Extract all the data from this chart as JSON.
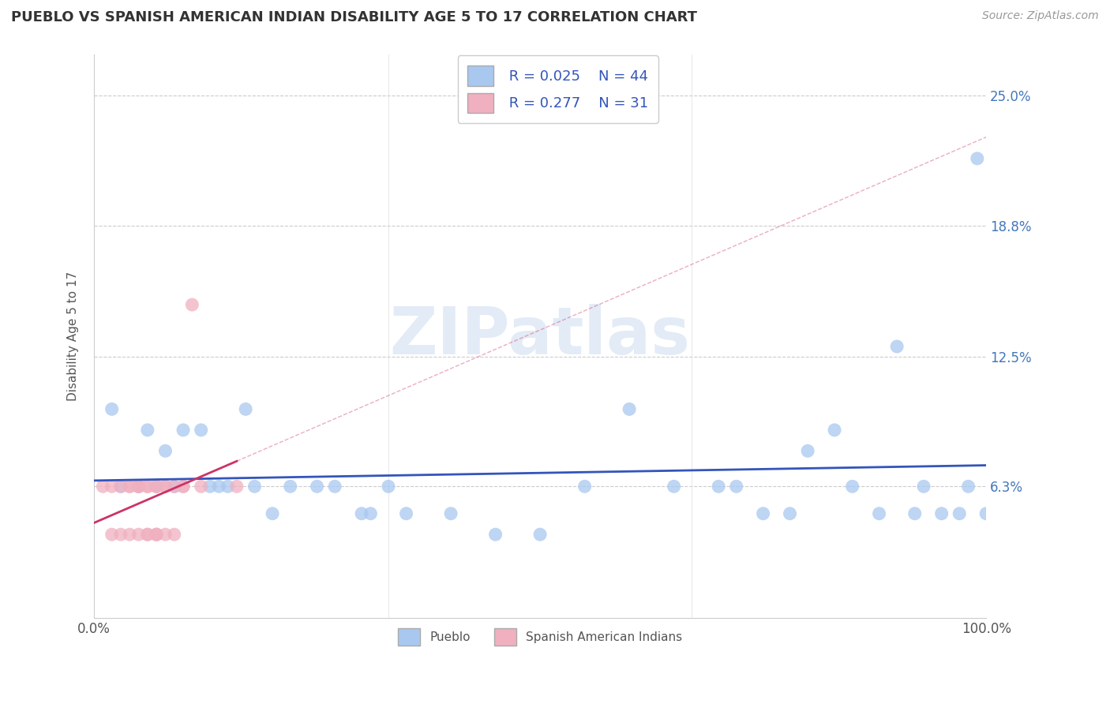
{
  "title": "PUEBLO VS SPANISH AMERICAN INDIAN DISABILITY AGE 5 TO 17 CORRELATION CHART",
  "source_text": "Source: ZipAtlas.com",
  "ylabel": "Disability Age 5 to 17",
  "xlim": [
    0,
    1.0
  ],
  "ylim": [
    0,
    0.27
  ],
  "ytick_values": [
    0.063,
    0.125,
    0.188,
    0.25
  ],
  "ytick_labels": [
    "6.3%",
    "12.5%",
    "18.8%",
    "25.0%"
  ],
  "xtick_values": [
    0.0,
    1.0
  ],
  "xtick_labels": [
    "0.0%",
    "100.0%"
  ],
  "background_color": "#ffffff",
  "grid_color": "#cccccc",
  "watermark_text": "ZIPatlas",
  "legend_R1": "R = 0.025",
  "legend_N1": "N = 44",
  "legend_R2": "R = 0.277",
  "legend_N2": "N = 31",
  "pueblo_color": "#a8c8f0",
  "spanish_color": "#f0b0c0",
  "pueblo_line_color": "#3355bb",
  "spanish_line_color": "#cc3366",
  "pueblo_scatter_x": [
    0.02,
    0.03,
    0.05,
    0.06,
    0.07,
    0.08,
    0.09,
    0.1,
    0.12,
    0.13,
    0.14,
    0.15,
    0.17,
    0.18,
    0.2,
    0.22,
    0.25,
    0.27,
    0.3,
    0.31,
    0.33,
    0.35,
    0.4,
    0.45,
    0.5,
    0.55,
    0.6,
    0.65,
    0.7,
    0.75,
    0.78,
    0.8,
    0.83,
    0.85,
    0.88,
    0.9,
    0.92,
    0.93,
    0.95,
    0.97,
    0.98,
    0.99,
    1.0,
    0.72
  ],
  "pueblo_scatter_y": [
    0.1,
    0.063,
    0.063,
    0.09,
    0.063,
    0.08,
    0.063,
    0.09,
    0.09,
    0.063,
    0.063,
    0.063,
    0.1,
    0.063,
    0.05,
    0.063,
    0.063,
    0.063,
    0.05,
    0.05,
    0.063,
    0.05,
    0.05,
    0.04,
    0.04,
    0.063,
    0.1,
    0.063,
    0.063,
    0.05,
    0.05,
    0.08,
    0.09,
    0.063,
    0.05,
    0.13,
    0.05,
    0.063,
    0.05,
    0.05,
    0.063,
    0.22,
    0.05,
    0.063
  ],
  "spanish_scatter_x": [
    0.01,
    0.02,
    0.02,
    0.03,
    0.03,
    0.04,
    0.04,
    0.04,
    0.05,
    0.05,
    0.05,
    0.05,
    0.06,
    0.06,
    0.06,
    0.06,
    0.07,
    0.07,
    0.07,
    0.07,
    0.07,
    0.08,
    0.08,
    0.08,
    0.09,
    0.09,
    0.1,
    0.1,
    0.11,
    0.12,
    0.16
  ],
  "spanish_scatter_y": [
    0.063,
    0.04,
    0.063,
    0.04,
    0.063,
    0.04,
    0.063,
    0.063,
    0.04,
    0.063,
    0.063,
    0.063,
    0.04,
    0.04,
    0.063,
    0.063,
    0.04,
    0.04,
    0.04,
    0.063,
    0.063,
    0.04,
    0.063,
    0.063,
    0.04,
    0.063,
    0.063,
    0.063,
    0.15,
    0.063,
    0.063
  ],
  "legend_bottom_labels": [
    "Pueblo",
    "Spanish American Indians"
  ]
}
